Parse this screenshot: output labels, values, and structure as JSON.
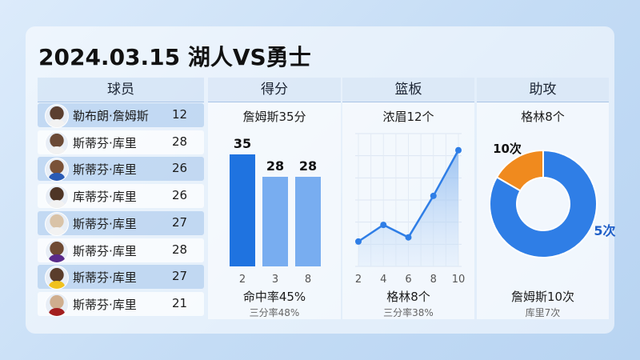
{
  "title": "2024.03.15 湖人VS勇士",
  "colors": {
    "bar_dark": "#1f73e0",
    "bar_light": "#78adf0",
    "line": "#2f7ee6",
    "donut_blue": "#2f7ee6",
    "donut_orange": "#f08a1e"
  },
  "players": {
    "header": "球员",
    "rows": [
      {
        "name": "勒布朗·詹姆斯",
        "value": "12"
      },
      {
        "name": "斯蒂芬·库里",
        "value": "28"
      },
      {
        "name": "斯蒂芬·库里",
        "value": "26"
      },
      {
        "name": "库蒂芬·库里",
        "value": "26"
      },
      {
        "name": "斯蒂芬·库里",
        "value": "27"
      },
      {
        "name": "斯蒂芬·库里",
        "value": "28"
      },
      {
        "name": "斯蒂芬·库里",
        "value": "27"
      },
      {
        "name": "斯蒂芬·库里",
        "value": "21"
      }
    ]
  },
  "panels": {
    "score": {
      "header": "得分",
      "subtitle": "詹姆斯35分",
      "foot_main": "命中率45%",
      "foot_sub": "三分率48%"
    },
    "rebound": {
      "header": "篮板",
      "subtitle": "浓眉12个",
      "foot_main": "格林8个",
      "foot_sub": "三分率38%"
    },
    "assist": {
      "header": "助攻",
      "subtitle": "格林8个",
      "foot_main": "詹姆斯10次",
      "foot_sub": "库里7次"
    }
  },
  "chart_data": [
    {
      "type": "bar",
      "categories": [
        "2",
        "3",
        "8"
      ],
      "values": [
        35,
        28,
        28
      ],
      "data_labels": [
        "35",
        "28",
        "28"
      ],
      "ylim": [
        0,
        40
      ]
    },
    {
      "type": "area",
      "x": [
        2,
        4,
        6,
        8,
        10
      ],
      "x_ticks": [
        "2",
        "4",
        "6",
        "8",
        "10"
      ],
      "values": [
        3,
        5,
        3.5,
        8.5,
        14
      ],
      "ylim": [
        0,
        16
      ],
      "grid": true
    },
    {
      "type": "pie",
      "donut": true,
      "slices": [
        {
          "label": "10次",
          "value": 10
        },
        {
          "label": "5次",
          "value": 50
        }
      ]
    }
  ]
}
